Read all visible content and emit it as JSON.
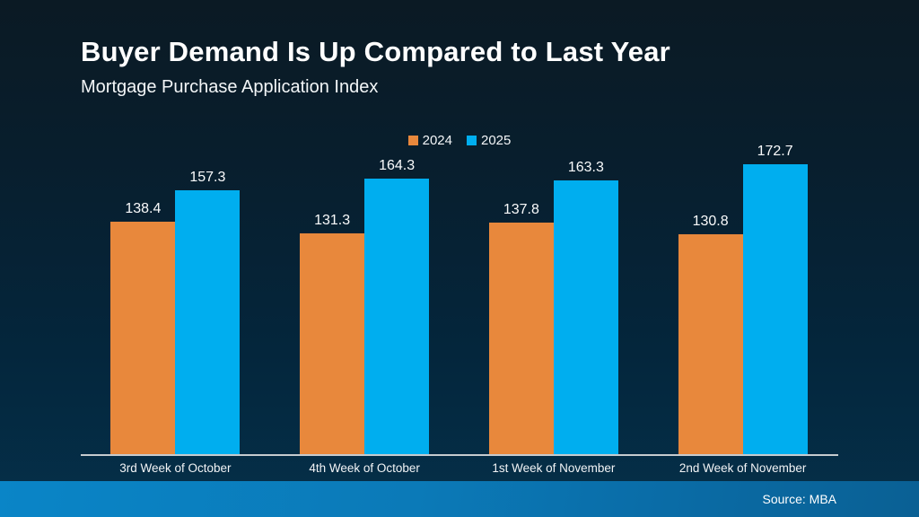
{
  "slide": {
    "title": "Buyer Demand Is Up Compared to Last Year",
    "subtitle": "Mortgage Purchase Application Index",
    "source": "Source: MBA"
  },
  "colors": {
    "background_top": "#0B1A24",
    "background_bottom": "#05304A",
    "series_2024": "#E8883C",
    "series_2025": "#00AEEF",
    "axis_line": "#C6CBCF",
    "footer_left": "#0A85C7",
    "footer_right": "#0A6094",
    "text": "#FFFFFF"
  },
  "chart_data": {
    "type": "bar",
    "title": "Buyer Demand Is Up Compared to Last Year",
    "subtitle": "Mortgage Purchase Application Index",
    "categories": [
      "3rd Week of October",
      "4th Week of October",
      "1st Week of November",
      "2nd Week of November"
    ],
    "series": [
      {
        "name": "2024",
        "color": "#E8883C",
        "values": [
          138.4,
          131.3,
          137.8,
          130.8
        ]
      },
      {
        "name": "2025",
        "color": "#00AEEF",
        "values": [
          157.3,
          164.3,
          163.3,
          172.7
        ]
      }
    ],
    "ylim": [
      0,
      180
    ],
    "grid": false,
    "value_labels": true,
    "legend_position": "top-center",
    "source": "Source: MBA"
  }
}
